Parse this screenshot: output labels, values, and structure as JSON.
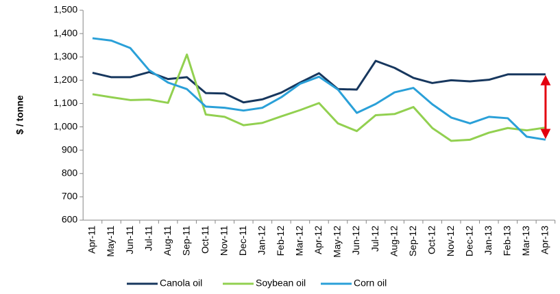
{
  "chart_data": {
    "type": "line",
    "y_label": "$ / tonne",
    "categories": [
      "Apr-11",
      "May-11",
      "Jun-11",
      "Jul-11",
      "Aug-11",
      "Sep-11",
      "Oct-11",
      "Nov-11",
      "Dec-11",
      "Jan-12",
      "Feb-12",
      "Mar-12",
      "Apr-12",
      "May-12",
      "Jun-12",
      "Jul-12",
      "Aug-12",
      "Sep-12",
      "Oct-12",
      "Nov-12",
      "Dec-12",
      "Jan-13",
      "Feb-13",
      "Mar-13",
      "Apr-13"
    ],
    "series": [
      {
        "name": "Canola oil",
        "color": "#17375e",
        "values": [
          1232,
          1213,
          1213,
          1235,
          1205,
          1213,
          1145,
          1143,
          1105,
          1118,
          1147,
          1190,
          1230,
          1162,
          1160,
          1283,
          1253,
          1210,
          1188,
          1200,
          1195,
          1202,
          1225,
          1225,
          1225
        ]
      },
      {
        "name": "Soybean oil",
        "color": "#92d050",
        "values": [
          1140,
          1127,
          1115,
          1117,
          1103,
          1310,
          1053,
          1043,
          1007,
          1017,
          1045,
          1072,
          1102,
          1015,
          982,
          1050,
          1055,
          1085,
          995,
          940,
          945,
          975,
          995,
          985,
          997
        ]
      },
      {
        "name": "Corn oil",
        "color": "#2aa0d8",
        "values": [
          1380,
          1370,
          1338,
          1243,
          1190,
          1162,
          1087,
          1082,
          1070,
          1082,
          1127,
          1185,
          1215,
          1160,
          1060,
          1098,
          1148,
          1167,
          1097,
          1040,
          1015,
          1043,
          1037,
          958,
          945
        ]
      }
    ],
    "ylim": [
      600,
      1500
    ],
    "yticks": [
      600,
      700,
      800,
      900,
      {
        "value": 1000,
        "label": "1,000"
      },
      {
        "value": 1100,
        "label": "1,100"
      },
      {
        "value": 1200,
        "label": "1,200"
      },
      {
        "value": 1300,
        "label": "1,300"
      },
      {
        "value": 1400,
        "label": "1,400"
      },
      {
        "value": 1500,
        "label": "1,500"
      }
    ],
    "grid": false,
    "legend": "bottom"
  }
}
